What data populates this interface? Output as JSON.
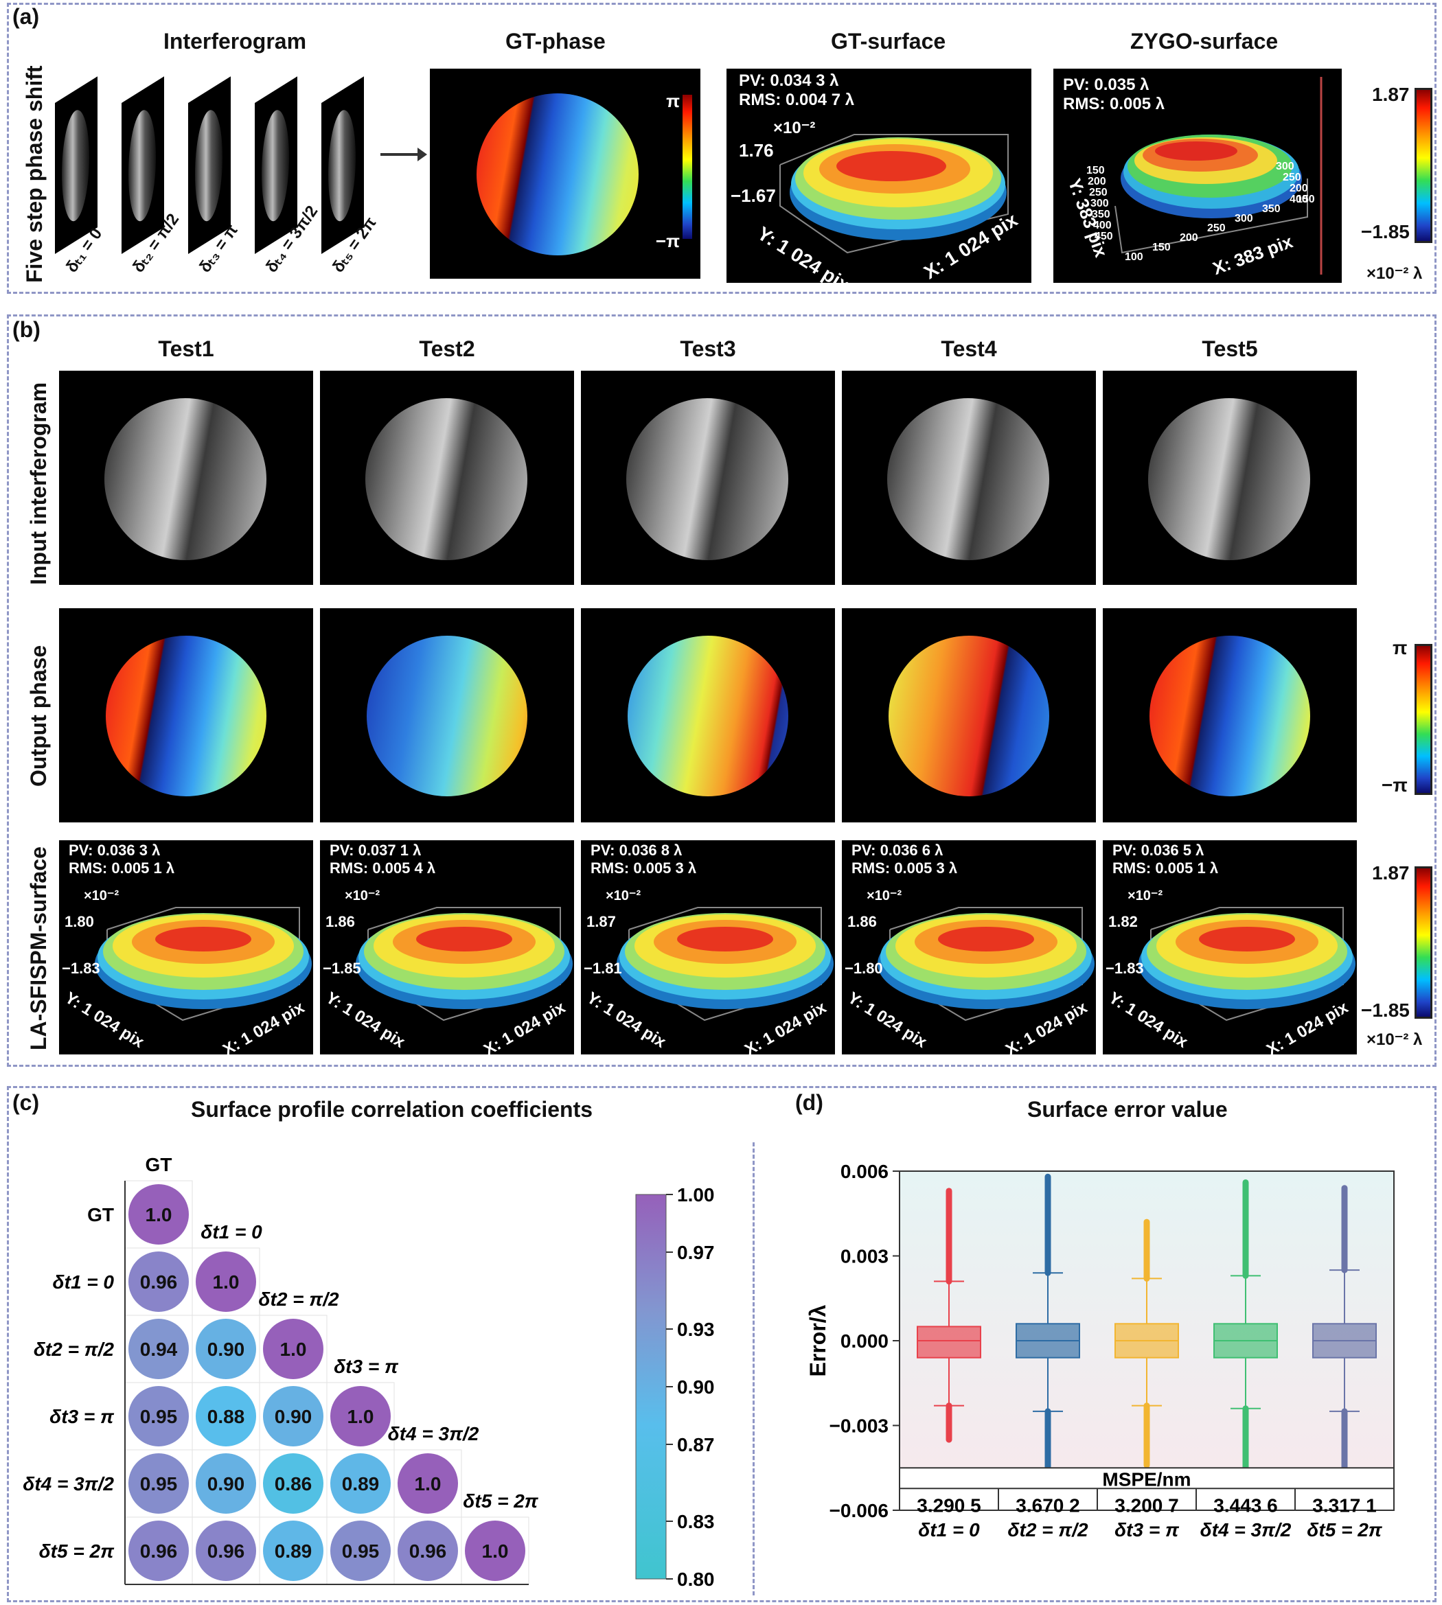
{
  "panel_a": {
    "label": "(a)",
    "row_label": "Five step phase shift",
    "titles": {
      "interferogram": "Interferogram",
      "gt_phase": "GT-phase",
      "gt_surface": "GT-surface",
      "zygo_surface": "ZYGO-surface"
    },
    "shifts": [
      "δₜ₁ = 0",
      "δₜ₂ = π/2",
      "δₜ₃ = π",
      "δₜ₄ = 3π/2",
      "δₜ₅ = 2π"
    ],
    "phase_cbar": {
      "max": "π",
      "min": "−π"
    },
    "gt_surface": {
      "pv": "PV: 0.034 3 λ",
      "rms": "RMS: 0.004 7 λ",
      "scale": "×10⁻²",
      "zmax": "1.76",
      "zmin": "−1.67",
      "ylab": "Y: 1 024 pix",
      "xlab": "X: 1 024 pix"
    },
    "zygo_surface": {
      "pv": "PV: 0.035 λ",
      "rms": "RMS: 0.005 λ",
      "ylab": "Y: 383 pix",
      "xlab": "X: 383 pix",
      "yticks": [
        "150",
        "200",
        "250",
        "300",
        "350",
        "400",
        "450"
      ],
      "xticks": [
        "100",
        "150",
        "200",
        "250",
        "300",
        "350",
        "400"
      ],
      "rticks": [
        "300",
        "250",
        "200",
        "150"
      ]
    },
    "surface_cbar": {
      "max": "1.87",
      "min": "−1.85",
      "unit": "×10⁻² λ"
    }
  },
  "panel_b": {
    "label": "(b)",
    "tests": [
      "Test1",
      "Test2",
      "Test3",
      "Test4",
      "Test5"
    ],
    "row_labels": [
      "Input interferogram",
      "Output phase",
      "LA-SFISPM-surface"
    ],
    "phase_cbar": {
      "max": "π",
      "min": "−π"
    },
    "surfaces": [
      {
        "pv": "PV: 0.036 3 λ",
        "rms": "RMS: 0.005 1 λ",
        "scale": "×10⁻²",
        "zmax": "1.80",
        "zmin": "−1.83"
      },
      {
        "pv": "PV: 0.037 1 λ",
        "rms": "RMS: 0.005 4 λ",
        "scale": "×10⁻²",
        "zmax": "1.86",
        "zmin": "−1.85"
      },
      {
        "pv": "PV: 0.036 8 λ",
        "rms": "RMS: 0.005 3 λ",
        "scale": "×10⁻²",
        "zmax": "1.87",
        "zmin": "−1.81"
      },
      {
        "pv": "PV: 0.036 6 λ",
        "rms": "RMS: 0.005 3 λ",
        "scale": "×10⁻²",
        "zmax": "1.86",
        "zmin": "−1.80"
      },
      {
        "pv": "PV: 0.036 5 λ",
        "rms": "RMS: 0.005 1 λ",
        "scale": "×10⁻²",
        "zmax": "1.82",
        "zmin": "−1.83"
      }
    ],
    "ylab": "Y: 1 024 pix",
    "xlab": "X: 1 024 pix",
    "surface_cbar": {
      "max": "1.87",
      "min": "−1.85",
      "unit": "×10⁻² λ"
    }
  },
  "chart_data": [
    {
      "type": "heatmap",
      "panel": "(c)",
      "title": "Surface profile correlation coefficients",
      "labels": [
        "GT",
        "δt1 = 0",
        "δt2 = π/2",
        "δt3 = π",
        "δt4 = 3π/2",
        "δt5 = 2π"
      ],
      "matrix": [
        [
          1.0
        ],
        [
          0.96,
          1.0
        ],
        [
          0.94,
          0.9,
          1.0
        ],
        [
          0.95,
          0.88,
          0.9,
          1.0
        ],
        [
          0.95,
          0.9,
          0.86,
          0.89,
          1.0
        ],
        [
          0.96,
          0.96,
          0.89,
          0.95,
          0.96,
          1.0
        ]
      ],
      "colorbar_ticks": [
        "1.00",
        "0.97",
        "0.93",
        "0.90",
        "0.87",
        "0.83",
        "0.80"
      ],
      "colorbar_range": [
        0.8,
        1.0
      ]
    },
    {
      "type": "box",
      "panel": "(d)",
      "title": "Surface error value",
      "ylabel": "Error/λ",
      "ylim": [
        -0.006,
        0.006
      ],
      "yticks": [
        "0.006",
        "0.003",
        "0.000",
        "−0.003",
        "−0.006"
      ],
      "categories": [
        "δt1 = 0",
        "δt2 = π/2",
        "δt3 = π",
        "δt4 = 3π/2",
        "δt5 = 2π"
      ],
      "colors": [
        "#e8414b",
        "#2e6ca4",
        "#f2b531",
        "#3fbf72",
        "#6a74a8"
      ],
      "boxes": [
        {
          "q1": -0.0006,
          "median": 0.0,
          "q3": 0.0005,
          "wlo": -0.0023,
          "whi": 0.0021,
          "outlo": -0.0035,
          "outhi": 0.0053
        },
        {
          "q1": -0.0006,
          "median": 0.0,
          "q3": 0.0006,
          "wlo": -0.0025,
          "whi": 0.0024,
          "outlo": -0.0048,
          "outhi": 0.0058
        },
        {
          "q1": -0.0006,
          "median": 0.0,
          "q3": 0.0006,
          "wlo": -0.0023,
          "whi": 0.0022,
          "outlo": -0.0044,
          "outhi": 0.0042
        },
        {
          "q1": -0.0006,
          "median": 0.0,
          "q3": 0.0006,
          "wlo": -0.0024,
          "whi": 0.0023,
          "outlo": -0.0048,
          "outhi": 0.0056
        },
        {
          "q1": -0.0006,
          "median": 0.0,
          "q3": 0.0006,
          "wlo": -0.0025,
          "whi": 0.0025,
          "outlo": -0.0046,
          "outhi": 0.0054
        }
      ],
      "table_header": "MSPE/nm",
      "mspe": [
        "3.290 5",
        "3.670 2",
        "3.200 7",
        "3.443 6",
        "3.317 1"
      ]
    }
  ],
  "labels_cd": {
    "c": "(c)",
    "d": "(d)"
  }
}
